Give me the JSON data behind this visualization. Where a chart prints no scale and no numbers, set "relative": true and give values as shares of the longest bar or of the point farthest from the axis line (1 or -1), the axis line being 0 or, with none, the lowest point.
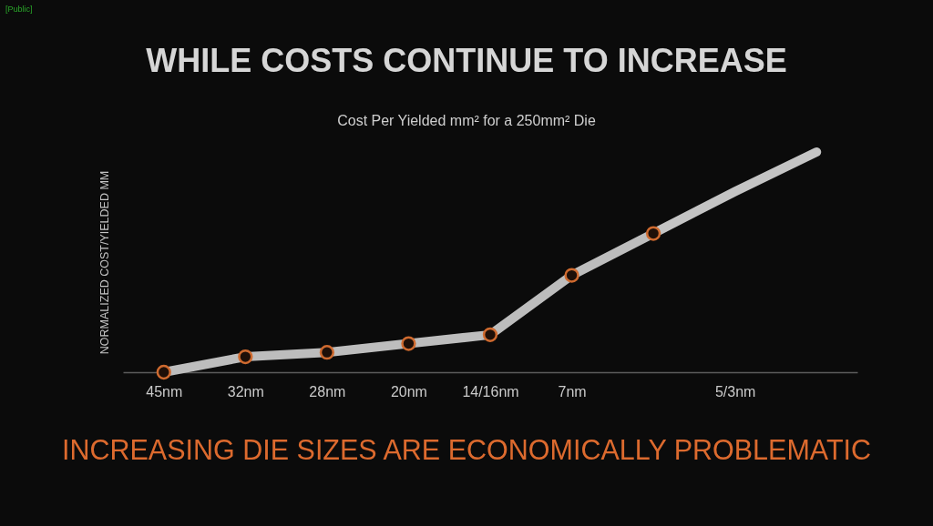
{
  "chart_data": {
    "type": "line",
    "title": "WHILE COSTS CONTINUE TO INCREASE",
    "subtitle": "Cost Per Yielded mm² for a 250mm² Die",
    "ylabel": "NORMALIZED COST/YIELDED MM",
    "annotations": [
      "[Public]",
      "INCREASING DIE SIZES ARE ECONOMICALLY PROBLEMATIC"
    ],
    "categories": [
      "45nm",
      "32nm",
      "28nm",
      "20nm",
      "14/16nm",
      "7nm",
      null,
      "5/3nm",
      null
    ],
    "relative": true,
    "marker": "circle",
    "line_style": "solid",
    "series": [
      {
        "color": "#bdbdbd",
        "values": [
          0,
          0.07,
          0.09,
          0.13,
          0.17,
          0.44,
          0.63,
          null,
          null
        ]
      },
      {
        "color": "#c4c4c4",
        "marker": "none",
        "values": [
          null,
          null,
          null,
          null,
          null,
          null,
          0.63,
          0.82,
          1
        ]
      }
    ]
  }
}
